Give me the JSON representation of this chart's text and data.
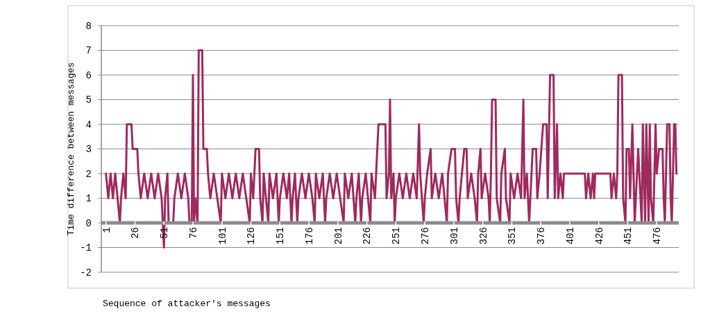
{
  "chart_data": {
    "type": "line",
    "xlabel": "Sequence of attacker's messages",
    "ylabel": "Time difference between messages",
    "xlim": [
      -3,
      495
    ],
    "xticks": [
      1,
      26,
      51,
      76,
      101,
      126,
      151,
      176,
      201,
      226,
      251,
      276,
      301,
      326,
      351,
      376,
      401,
      426,
      451,
      476
    ],
    "ylim": [
      -2,
      8
    ],
    "yticks": [
      -2,
      -1,
      0,
      1,
      2,
      3,
      4,
      5,
      6,
      7,
      8
    ],
    "grid": "y",
    "marker": "none",
    "line_style": "solid",
    "series": [
      {
        "color": "#9e2a5e",
        "x": [
          1,
          3,
          5,
          7,
          9,
          11,
          13,
          14,
          16,
          18,
          19,
          23,
          24,
          28,
          29,
          31,
          34,
          37,
          40,
          43,
          46,
          49,
          51,
          52,
          54,
          55,
          59,
          60,
          63,
          66,
          69,
          72,
          73,
          75,
          76,
          77,
          78,
          80,
          81,
          84,
          85,
          88,
          89,
          91,
          94,
          97,
          100,
          101,
          104,
          107,
          110,
          113,
          116,
          119,
          122,
          125,
          126,
          128,
          130,
          133,
          134,
          136,
          137,
          139,
          141,
          142,
          145,
          148,
          150,
          151,
          154,
          157,
          159,
          161,
          162,
          164,
          166,
          167,
          170,
          173,
          176,
          179,
          181,
          182,
          185,
          188,
          190,
          191,
          194,
          197,
          200,
          203,
          206,
          207,
          210,
          213,
          216,
          217,
          219,
          221,
          222,
          225,
          227,
          229,
          230,
          233,
          236,
          242,
          243,
          245,
          246,
          247,
          249,
          250,
          251,
          254,
          257,
          260,
          263,
          266,
          269,
          271,
          272,
          275,
          276,
          278,
          281,
          282,
          285,
          288,
          291,
          293,
          295,
          296,
          299,
          302,
          303,
          305,
          306,
          308,
          310,
          312,
          313,
          316,
          319,
          321,
          322,
          324,
          325,
          328,
          331,
          332,
          333,
          334,
          337,
          338,
          341,
          342,
          345,
          346,
          349,
          350,
          353,
          356,
          359,
          361,
          362,
          364,
          366,
          367,
          369,
          372,
          373,
          375,
          378,
          381,
          382,
          384,
          387,
          388,
          390,
          391,
          393,
          395,
          396,
          414,
          415,
          417,
          419,
          421,
          422,
          423,
          436,
          437,
          439,
          441,
          442,
          443,
          446,
          447,
          449,
          450,
          452,
          453,
          455,
          456,
          457,
          458,
          460,
          461,
          463,
          464,
          466,
          467,
          469,
          470,
          471,
          473,
          475,
          476,
          478,
          481,
          482,
          483,
          484,
          485,
          487,
          488,
          489,
          490,
          491,
          492,
          493
        ],
        "values": [
          2,
          1,
          2,
          1,
          2,
          1,
          0,
          1,
          2,
          1,
          4,
          4,
          3,
          3,
          2,
          1,
          2,
          1,
          2,
          1,
          2,
          1,
          -1,
          1,
          2,
          0,
          0,
          1,
          2,
          1,
          2,
          1,
          0,
          0,
          6,
          0,
          1,
          0,
          7,
          7,
          3,
          3,
          2,
          1,
          2,
          1,
          0,
          2,
          1,
          2,
          1,
          2,
          1,
          2,
          1,
          0,
          2,
          1,
          3,
          3,
          1,
          0,
          2,
          1,
          0,
          2,
          1,
          2,
          0,
          1,
          2,
          1,
          2,
          0,
          1,
          2,
          0,
          1,
          2,
          1,
          2,
          1,
          0,
          2,
          1,
          2,
          0,
          1,
          2,
          1,
          2,
          1,
          0,
          2,
          1,
          2,
          0,
          1,
          2,
          0,
          1,
          2,
          1,
          0,
          2,
          1,
          4,
          4,
          1,
          2,
          5,
          1,
          2,
          0,
          1,
          2,
          1,
          2,
          1,
          2,
          1,
          4,
          2,
          0,
          1,
          2,
          3,
          1,
          2,
          1,
          2,
          1,
          0,
          2,
          3,
          3,
          1,
          0,
          1,
          2,
          3,
          3,
          1,
          2,
          1,
          0,
          2,
          3,
          1,
          2,
          1,
          0,
          2,
          5,
          5,
          1,
          0,
          2,
          3,
          1,
          0,
          2,
          1,
          2,
          1,
          5,
          1,
          2,
          0,
          1,
          3,
          3,
          1,
          2,
          4,
          4,
          1,
          6,
          6,
          1,
          4,
          1,
          2,
          1,
          2,
          2,
          1,
          2,
          1,
          2,
          1,
          2,
          2,
          1,
          2,
          1,
          2,
          6,
          6,
          1,
          0,
          3,
          3,
          1,
          4,
          2,
          0,
          1,
          3,
          2,
          0,
          4,
          0,
          4,
          0,
          4,
          1,
          0,
          4,
          2,
          3,
          3,
          1,
          0,
          2,
          4,
          4,
          1,
          0,
          2,
          4,
          4,
          2
        ]
      }
    ]
  }
}
